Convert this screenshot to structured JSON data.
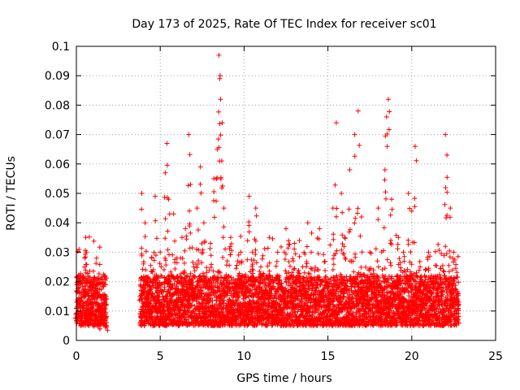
{
  "chart_data": {
    "type": "scatter",
    "title": "Day 173 of 2025, Rate Of TEC Index for receiver sc01",
    "xlabel": "GPS time / hours",
    "ylabel": "ROTI / TECUs",
    "xlim": [
      0,
      25
    ],
    "ylim": [
      0,
      0.1
    ],
    "xticks": [
      0,
      5,
      10,
      15,
      20,
      25
    ],
    "yticks": [
      0,
      0.01,
      0.02,
      0.03,
      0.04,
      0.05,
      0.06,
      0.07,
      0.08,
      0.09,
      0.1
    ],
    "grid": true,
    "marker": "plus",
    "color": "#ff0000",
    "series": [
      {
        "points": [
          [
            0.0,
            0.011
          ],
          [
            0.1,
            0.013
          ],
          [
            0.15,
            0.02
          ],
          [
            0.2,
            0.016
          ],
          [
            0.3,
            0.009
          ],
          [
            0.4,
            0.013
          ],
          [
            0.5,
            0.028
          ],
          [
            0.55,
            0.035
          ],
          [
            0.6,
            0.03
          ],
          [
            0.7,
            0.012
          ],
          [
            0.8,
            0.009
          ],
          [
            0.9,
            0.016
          ],
          [
            1.0,
            0.011
          ],
          [
            1.1,
            0.007
          ],
          [
            1.2,
            0.013
          ],
          [
            1.3,
            0.01
          ],
          [
            1.4,
            0.006
          ],
          [
            1.5,
            0.012
          ],
          [
            1.6,
            0.015
          ],
          [
            1.7,
            0.022
          ],
          [
            1.75,
            0.009
          ],
          [
            1.8,
            0.006
          ],
          [
            3.8,
            0.015
          ],
          [
            3.9,
            0.05
          ],
          [
            4.0,
            0.026
          ],
          [
            4.1,
            0.04
          ],
          [
            4.2,
            0.013
          ],
          [
            4.3,
            0.021
          ],
          [
            4.4,
            0.01
          ],
          [
            4.5,
            0.028
          ],
          [
            4.7,
            0.049
          ],
          [
            4.8,
            0.015
          ],
          [
            5.0,
            0.03
          ],
          [
            5.2,
            0.014
          ],
          [
            5.3,
            0.057
          ],
          [
            5.4,
            0.067
          ],
          [
            5.5,
            0.048
          ],
          [
            5.6,
            0.02
          ],
          [
            5.8,
            0.043
          ],
          [
            6.0,
            0.028
          ],
          [
            6.2,
            0.016
          ],
          [
            6.5,
            0.038
          ],
          [
            6.7,
            0.07
          ],
          [
            6.8,
            0.053
          ],
          [
            7.0,
            0.025
          ],
          [
            7.2,
            0.045
          ],
          [
            7.4,
            0.059
          ],
          [
            7.6,
            0.04
          ],
          [
            7.8,
            0.02
          ],
          [
            8.0,
            0.033
          ],
          [
            8.2,
            0.055
          ],
          [
            8.4,
            0.065
          ],
          [
            8.5,
            0.097
          ],
          [
            8.55,
            0.089
          ],
          [
            8.6,
            0.082
          ],
          [
            8.7,
            0.074
          ],
          [
            8.8,
            0.045
          ],
          [
            9.0,
            0.027
          ],
          [
            9.2,
            0.035
          ],
          [
            9.5,
            0.019
          ],
          [
            9.8,
            0.03
          ],
          [
            10.0,
            0.022
          ],
          [
            10.3,
            0.049
          ],
          [
            10.5,
            0.03
          ],
          [
            10.7,
            0.045
          ],
          [
            11.0,
            0.025
          ],
          [
            11.5,
            0.035
          ],
          [
            12.0,
            0.03
          ],
          [
            12.5,
            0.038
          ],
          [
            13.0,
            0.033
          ],
          [
            13.5,
            0.025
          ],
          [
            13.8,
            0.04
          ],
          [
            14.0,
            0.03
          ],
          [
            14.5,
            0.038
          ],
          [
            15.0,
            0.02
          ],
          [
            15.3,
            0.045
          ],
          [
            15.5,
            0.074
          ],
          [
            15.8,
            0.05
          ],
          [
            16.0,
            0.035
          ],
          [
            16.3,
            0.058
          ],
          [
            16.6,
            0.07
          ],
          [
            16.8,
            0.078
          ],
          [
            17.0,
            0.042
          ],
          [
            17.5,
            0.03
          ],
          [
            18.0,
            0.045
          ],
          [
            18.4,
            0.058
          ],
          [
            18.5,
            0.076
          ],
          [
            18.6,
            0.082
          ],
          [
            18.8,
            0.048
          ],
          [
            19.2,
            0.035
          ],
          [
            19.5,
            0.03
          ],
          [
            19.8,
            0.05
          ],
          [
            20.0,
            0.044
          ],
          [
            20.2,
            0.066
          ],
          [
            20.5,
            0.025
          ],
          [
            21.0,
            0.03
          ],
          [
            21.5,
            0.02
          ],
          [
            22.0,
            0.07
          ],
          [
            22.1,
            0.063
          ],
          [
            22.3,
            0.045
          ],
          [
            22.5,
            0.03
          ],
          [
            22.8,
            0.013
          ]
        ],
        "density": {
          "ranges": [
            [
              0.0,
              1.8
            ],
            [
              3.8,
              22.8
            ]
          ],
          "typical_low": 0.005,
          "typical_high": 0.022
        }
      }
    ]
  }
}
